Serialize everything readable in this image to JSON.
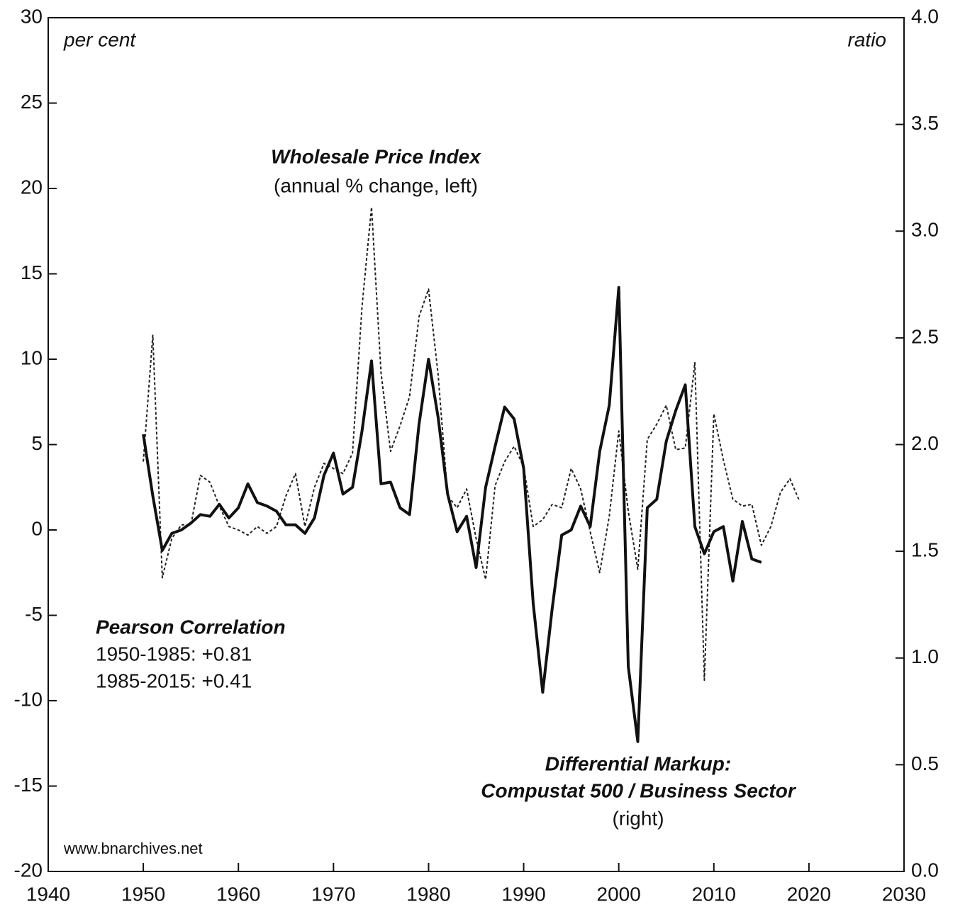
{
  "chart_data": {
    "type": "line",
    "annotations": {
      "left_unit": "per cent",
      "right_unit": "ratio",
      "wpi_title": "Wholesale Price Index",
      "wpi_sub": "(annual % change, left)",
      "corr_title": "Pearson Correlation",
      "corr_1": "1950-1985: +0.81",
      "corr_2": "1985-2015: +0.41",
      "dm_title": "Differential Markup:",
      "dm_title2": "Compustat 500 / Business Sector",
      "dm_sub": "(right)",
      "source": "www.bnarchives.net"
    },
    "x": [
      1950,
      1951,
      1952,
      1953,
      1954,
      1955,
      1956,
      1957,
      1958,
      1959,
      1960,
      1961,
      1962,
      1963,
      1964,
      1965,
      1966,
      1967,
      1968,
      1969,
      1970,
      1971,
      1972,
      1973,
      1974,
      1975,
      1976,
      1977,
      1978,
      1979,
      1980,
      1981,
      1982,
      1983,
      1984,
      1985,
      1986,
      1987,
      1988,
      1989,
      1990,
      1991,
      1992,
      1993,
      1994,
      1995,
      1996,
      1997,
      1998,
      1999,
      2000,
      2001,
      2002,
      2003,
      2004,
      2005,
      2006,
      2007,
      2008,
      2009,
      2010,
      2011,
      2012,
      2013,
      2014,
      2015,
      2016,
      2017,
      2018,
      2019
    ],
    "series": [
      {
        "name": "Wholesale Price Index",
        "color": "#222222",
        "dash": true,
        "axis": "y",
        "values": [
          4.0,
          11.4,
          -2.8,
          -0.5,
          0.3,
          0.3,
          3.2,
          2.8,
          1.4,
          0.2,
          0.0,
          -0.3,
          0.2,
          -0.2,
          0.2,
          2.0,
          3.3,
          0.2,
          2.5,
          3.9,
          3.6,
          3.3,
          4.5,
          13.1,
          18.9,
          9.2,
          4.6,
          6.1,
          7.8,
          12.5,
          14.1,
          9.1,
          2.0,
          1.3,
          2.4,
          -0.5,
          -2.9,
          2.6,
          4.0,
          4.9,
          3.7,
          0.2,
          0.6,
          1.5,
          1.3,
          3.6,
          2.4,
          -0.1,
          -2.5,
          0.8,
          5.8,
          1.1,
          -2.3,
          5.3,
          6.2,
          7.3,
          4.7,
          4.8,
          9.8,
          -8.8,
          6.8,
          4.1,
          1.8,
          1.4,
          1.5,
          -0.9,
          0.2,
          2.2,
          3.0,
          1.7
        ]
      },
      {
        "name": "Differential Markup",
        "color": "#111111",
        "dash": false,
        "axis": "y2",
        "values": [
          2.048,
          1.76,
          1.504,
          1.584,
          1.6,
          1.632,
          1.672,
          1.664,
          1.72,
          1.656,
          1.704,
          1.816,
          1.728,
          1.712,
          1.688,
          1.624,
          1.624,
          1.584,
          1.656,
          1.856,
          1.96,
          1.768,
          1.8,
          2.064,
          2.392,
          1.816,
          1.824,
          1.704,
          1.672,
          2.096,
          2.4,
          2.128,
          1.768,
          1.592,
          1.664,
          1.424,
          1.8,
          1.992,
          2.176,
          2.12,
          1.888,
          1.256,
          0.84,
          1.232,
          1.576,
          1.6,
          1.712,
          1.616,
          1.968,
          2.184,
          2.736,
          0.96,
          0.608,
          1.704,
          1.744,
          2.016,
          2.16,
          2.28,
          1.616,
          1.488,
          1.592,
          1.616,
          1.36,
          1.64,
          1.464,
          1.448,
          null,
          null,
          null,
          null
        ]
      }
    ],
    "xlim": [
      1940,
      2030
    ],
    "xticks": [
      1940,
      1950,
      1960,
      1970,
      1980,
      1990,
      2000,
      2010,
      2020,
      2030
    ],
    "ylim": [
      -20,
      30
    ],
    "yticks": [
      -20,
      -15,
      -10,
      -5,
      0,
      5,
      10,
      15,
      20,
      25,
      30
    ],
    "y2lim": [
      0,
      4
    ],
    "y2ticks": [
      {
        "value": 0,
        "label": "0.0"
      },
      0.5,
      {
        "value": 1,
        "label": "1.0"
      },
      1.5,
      {
        "value": 2,
        "label": "2.0"
      },
      2.5,
      {
        "value": 3,
        "label": "3.0"
      },
      3.5,
      {
        "value": 4,
        "label": "4.0"
      }
    ]
  }
}
